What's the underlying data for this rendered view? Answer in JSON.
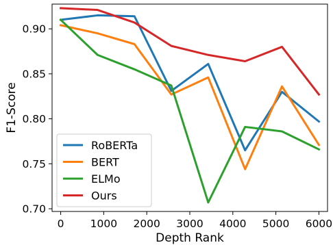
{
  "chart_data": {
    "type": "line",
    "xlabel": "Depth Rank",
    "ylabel": "F1-Score",
    "xlim": [
      -200,
      6200
    ],
    "ylim": [
      0.697,
      0.9275
    ],
    "x": [
      0,
      857,
      1714,
      2571,
      3428,
      4285,
      5142,
      6000
    ],
    "xticks": [
      0,
      1000,
      2000,
      3000,
      4000,
      5000,
      6000
    ],
    "xtick_labels": [
      "0",
      "1000",
      "2000",
      "3000",
      "4000",
      "5000",
      "6000"
    ],
    "yticks": [
      0.7,
      0.75,
      0.8,
      0.85,
      0.9
    ],
    "ytick_labels": [
      "0.70",
      "0.75",
      "0.80",
      "0.85",
      "0.90"
    ],
    "grid": false,
    "legend_position": "lower-left",
    "series": [
      {
        "name": "RoBERTa",
        "color": "#1f77b4",
        "values": [
          0.91,
          0.915,
          0.914,
          0.831,
          0.861,
          0.765,
          0.83,
          0.797
        ]
      },
      {
        "name": "BERT",
        "color": "#ff7f0e",
        "values": [
          0.904,
          0.895,
          0.883,
          0.827,
          0.846,
          0.744,
          0.836,
          0.771
        ]
      },
      {
        "name": "ELMo",
        "color": "#2ca02c",
        "values": [
          0.91,
          0.871,
          0.855,
          0.837,
          0.707,
          0.791,
          0.786,
          0.766
        ]
      },
      {
        "name": "Ours",
        "color": "#d62728",
        "values": [
          0.923,
          0.921,
          0.907,
          0.881,
          0.871,
          0.864,
          0.88,
          0.827
        ]
      }
    ]
  }
}
